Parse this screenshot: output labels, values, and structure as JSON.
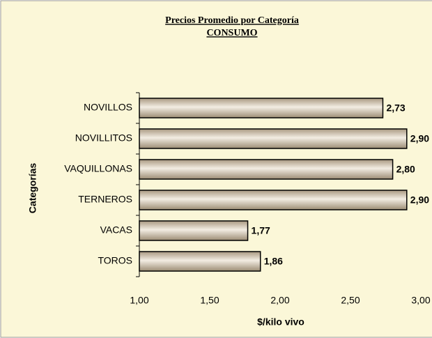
{
  "chart_data": {
    "type": "bar",
    "orientation": "horizontal",
    "title": "Precios Promedio por Categoría",
    "subtitle": "CONSUMO",
    "x_label": "$/kilo vivo",
    "y_label": "Categorías",
    "categories": [
      "NOVILLOS",
      "NOVILLITOS",
      "VAQUILLONAS",
      "TERNEROS",
      "VACAS",
      "TOROS"
    ],
    "values": [
      2.73,
      2.9,
      2.8,
      2.9,
      1.77,
      1.86
    ],
    "value_labels": [
      "2,73",
      "2,90",
      "2,80",
      "2,90",
      "1,77",
      "1,86"
    ],
    "color": "#d8cab2",
    "xlim": [
      1,
      3
    ],
    "xticks": [
      {
        "value": 1,
        "label": "1,00"
      },
      {
        "value": 1.5,
        "label": "1,50"
      },
      {
        "value": 2,
        "label": "2,00"
      },
      {
        "value": 2.5,
        "label": "2,50"
      },
      {
        "value": 3,
        "label": "3,00"
      }
    ],
    "grid": false
  }
}
